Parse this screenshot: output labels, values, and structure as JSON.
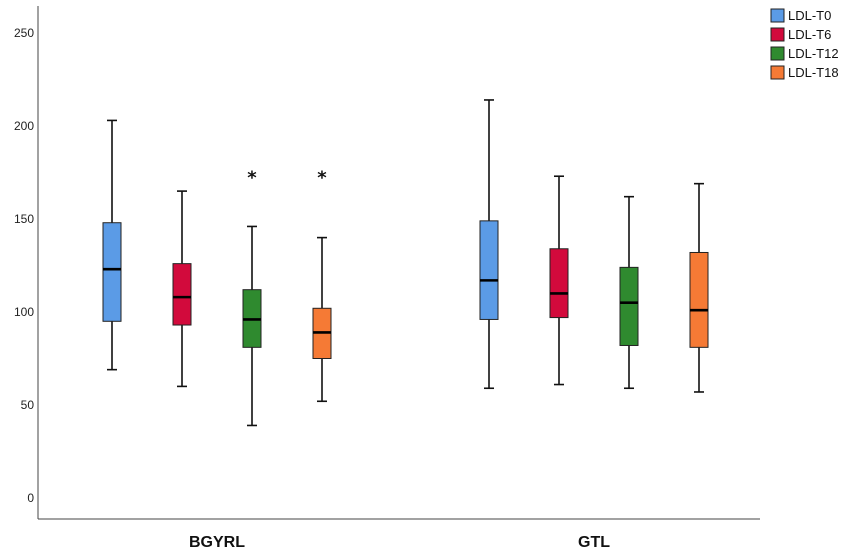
{
  "chart_data": {
    "type": "boxplot",
    "categories": [
      "BGYRL",
      "GTL"
    ],
    "ylim": [
      0,
      260
    ],
    "yticks": [
      0,
      50,
      100,
      150,
      200,
      250
    ],
    "legend_position": "top-right",
    "grid": false,
    "series": [
      {
        "name": "LDL-T0",
        "color": "#5b9be6",
        "boxes": [
          {
            "min": 69,
            "q1": 95,
            "median": 123,
            "q3": 148,
            "max": 203,
            "outliers": []
          },
          {
            "min": 59,
            "q1": 96,
            "median": 117,
            "q3": 149,
            "max": 214,
            "outliers": []
          }
        ]
      },
      {
        "name": "LDL-T6",
        "color": "#d20a3c",
        "boxes": [
          {
            "min": 60,
            "q1": 93,
            "median": 108,
            "q3": 126,
            "max": 165,
            "outliers": []
          },
          {
            "min": 61,
            "q1": 97,
            "median": 110,
            "q3": 134,
            "max": 173,
            "outliers": []
          }
        ]
      },
      {
        "name": "LDL-T12",
        "color": "#2f8a2f",
        "boxes": [
          {
            "min": 39,
            "q1": 81,
            "median": 96,
            "q3": 112,
            "max": 146,
            "outliers": [
              174
            ]
          },
          {
            "min": 59,
            "q1": 82,
            "median": 105,
            "q3": 124,
            "max": 162,
            "outliers": []
          }
        ]
      },
      {
        "name": "LDL-T18",
        "color": "#f57a35",
        "boxes": [
          {
            "min": 52,
            "q1": 75,
            "median": 89,
            "q3": 102,
            "max": 140,
            "outliers": [
              174
            ]
          },
          {
            "min": 57,
            "q1": 81,
            "median": 101,
            "q3": 132,
            "max": 169,
            "outliers": []
          }
        ]
      }
    ]
  }
}
